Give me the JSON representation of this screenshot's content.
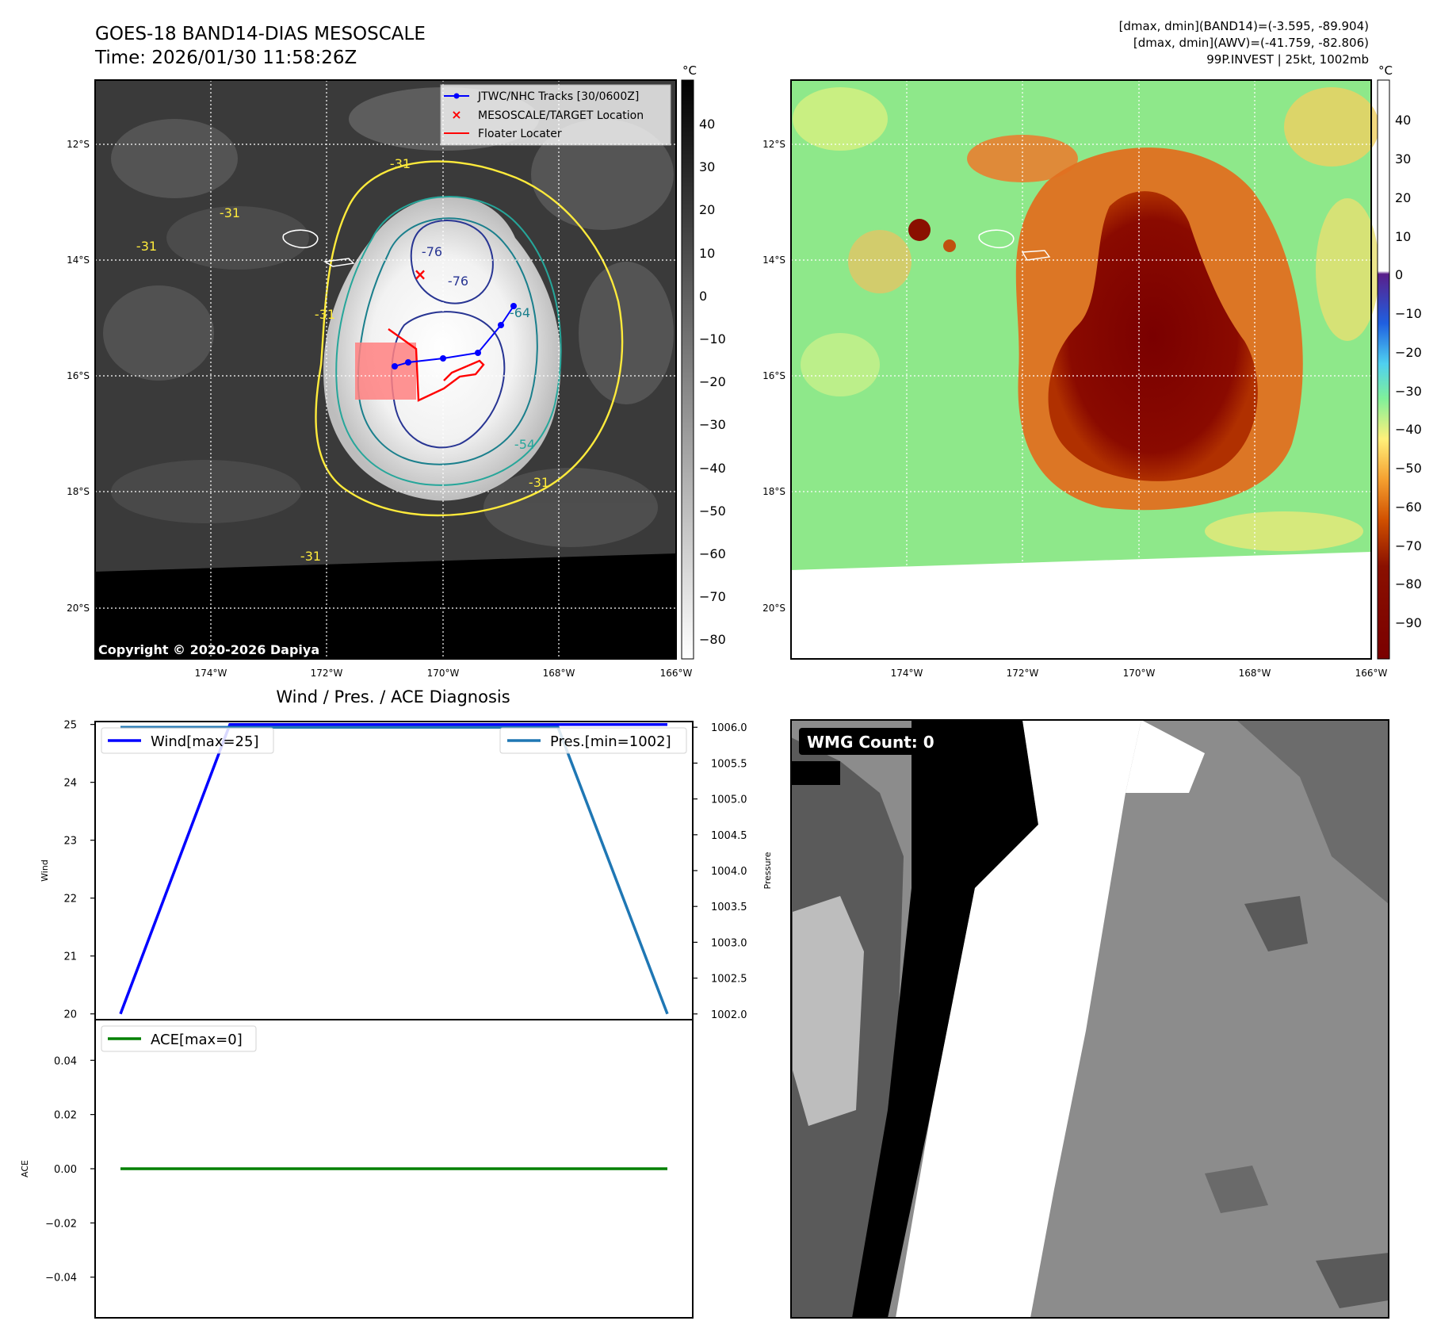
{
  "header": {
    "title_line1": "GOES-18 BAND14-DIAS MESOSCALE",
    "title_line2": "Time: 2026/01/30 11:58:26Z",
    "info_line1": "[dmax, dmin](BAND14)=(-3.595, -89.904)",
    "info_line2": "[dmax, dmin](AWV)=(-41.759, -82.806)",
    "info_line3": "99P.INVEST | 25kt, 1002mb"
  },
  "map_left": {
    "lon_ticks": [
      "174°W",
      "172°W",
      "170°W",
      "168°W",
      "166°W"
    ],
    "lat_ticks": [
      "12°S",
      "14°S",
      "16°S",
      "18°S",
      "20°S"
    ],
    "legend": [
      "JTWC/NHC Tracks [30/0600Z]",
      "MESOSCALE/TARGET Location",
      "Floater Locater"
    ],
    "copyright": "Copyright © 2020-2026 Dapiya",
    "contour_labels": [
      "-76",
      "-76",
      "-64",
      "-54",
      "-31",
      "-31",
      "-31",
      "-31",
      "-31",
      "-31"
    ],
    "colorbar_unit": "°C",
    "colorbar_ticks": [
      "40",
      "30",
      "20",
      "10",
      "0",
      "−10",
      "−20",
      "−30",
      "−40",
      "−50",
      "−60",
      "−70",
      "−80"
    ],
    "colors": {
      "track": "#0000ff",
      "target": "#ff0000",
      "floater": "#ff0000"
    }
  },
  "map_right": {
    "lon_ticks": [
      "174°W",
      "172°W",
      "170°W",
      "168°W",
      "166°W"
    ],
    "lat_ticks": [
      "12°S",
      "14°S",
      "16°S",
      "18°S",
      "20°S"
    ],
    "colorbar_unit": "°C",
    "colorbar_ticks": [
      "40",
      "30",
      "20",
      "10",
      "0",
      "−10",
      "−20",
      "−30",
      "−40",
      "−50",
      "−60",
      "−70",
      "−80",
      "−90"
    ]
  },
  "wind_panel_title": "Wind / Pres. / ACE Diagnosis",
  "wmg": {
    "label": "WMG Count: 0"
  },
  "chart_data": [
    {
      "type": "line",
      "title": "Wind / Pres. / ACE Diagnosis",
      "ylabel": "Wind",
      "ylabel_right": "Pressure",
      "ylim": [
        19.9,
        25.05
      ],
      "ylim_right": [
        1001.92,
        1006.08
      ],
      "y_ticks": [
        "20",
        "21",
        "22",
        "23",
        "24",
        "25"
      ],
      "y_ticks_right": [
        "1002.0",
        "1002.5",
        "1003.0",
        "1003.5",
        "1004.0",
        "1004.5",
        "1005.0",
        "1005.5",
        "1006.0"
      ],
      "series": [
        {
          "name": "Wind[max=25]",
          "axis": "left",
          "color": "#0000ff",
          "x": [
            0,
            1,
            2,
            3,
            4,
            5
          ],
          "values": [
            20,
            25,
            25,
            25,
            25,
            25
          ]
        },
        {
          "name": "Pres.[min=1002]",
          "axis": "right",
          "color": "#1f77b4",
          "x": [
            0,
            1,
            2,
            3,
            4,
            5
          ],
          "values": [
            1006,
            1006,
            1006,
            1006,
            1006,
            1002
          ]
        }
      ]
    },
    {
      "type": "line",
      "ylabel": "ACE",
      "ylim": [
        -0.055,
        0.055
      ],
      "y_ticks": [
        "0.04",
        "0.02",
        "0.00",
        "−0.02",
        "−0.04"
      ],
      "series": [
        {
          "name": "ACE[max=0]",
          "color": "#008000",
          "x": [
            0,
            1,
            2,
            3,
            4,
            5
          ],
          "values": [
            0,
            0,
            0,
            0,
            0,
            0
          ]
        }
      ]
    }
  ]
}
